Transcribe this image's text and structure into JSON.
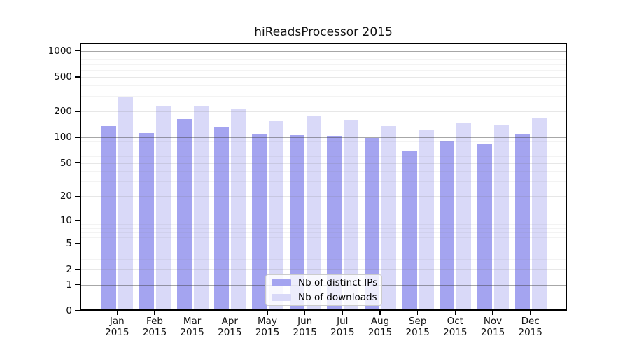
{
  "chart_data": {
    "type": "bar",
    "title": "hiReadsProcessor 2015",
    "months": [
      "Jan",
      "Feb",
      "Mar",
      "Apr",
      "May",
      "Jun",
      "Jul",
      "Aug",
      "Sep",
      "Oct",
      "Nov",
      "Dec"
    ],
    "year": "2015",
    "series": [
      {
        "name": "Nb of distinct IPs",
        "color": "#a4a4f0",
        "values": [
          136,
          112,
          162,
          130,
          107,
          106,
          103,
          98,
          69,
          90,
          84,
          110
        ]
      },
      {
        "name": "Nb of downloads",
        "color": "#d9d9f8",
        "values": [
          290,
          232,
          232,
          211,
          153,
          176,
          156,
          135,
          124,
          149,
          140,
          165
        ]
      }
    ],
    "yticks": [
      0,
      1,
      2,
      5,
      10,
      20,
      50,
      100,
      200,
      500,
      1000
    ],
    "scale": "log1p",
    "ylim": [
      0,
      1250
    ],
    "grid": true,
    "legend_position": "inside-bottom-center",
    "text_color": "#111111",
    "axis_color": "#000000"
  }
}
